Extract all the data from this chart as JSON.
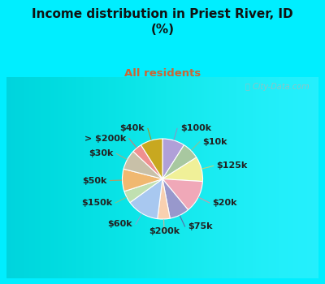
{
  "title": "Income distribution in Priest River, ID\n(%)",
  "subtitle": "All residents",
  "title_color": "#111111",
  "subtitle_color": "#cc6633",
  "bg_cyan": "#00eeff",
  "bg_chart_color": "#d4ede4",
  "watermark": "City-Data.com",
  "labels": [
    "$100k",
    "$10k",
    "$125k",
    "$20k",
    "$75k",
    "$200k",
    "$60k",
    "$150k",
    "$50k",
    "$30k",
    "> $200k",
    "$40k"
  ],
  "values": [
    9,
    7,
    10,
    13,
    8,
    5,
    13,
    5,
    9,
    8,
    4,
    9
  ],
  "colors": [
    "#b0a0d8",
    "#a8c8a0",
    "#f0f098",
    "#f0a8b8",
    "#9898cc",
    "#f8d0b0",
    "#a8c8f0",
    "#c0e0b0",
    "#f0b870",
    "#c8c0a8",
    "#f09090",
    "#c8a820"
  ],
  "line_colors": [
    "#9090c0",
    "#90c090",
    "#d0d070",
    "#e090a0",
    "#6060a0",
    "#e0b090",
    "#90a0d0",
    "#90c080",
    "#d09050",
    "#b0a880",
    "#e07070",
    "#b09010"
  ],
  "figsize": [
    4.0,
    3.5
  ],
  "dpi": 100,
  "startangle": 90,
  "label_fontsize": 8
}
